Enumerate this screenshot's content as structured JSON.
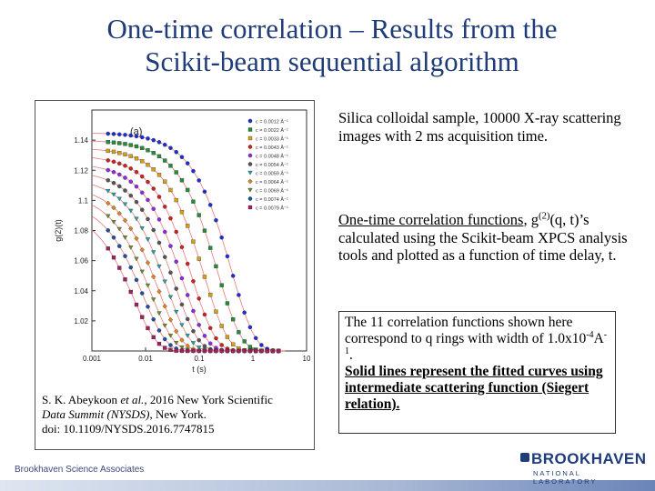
{
  "title": {
    "line1": "One-time correlation – Results from the",
    "line2": "Scikit-beam sequential algorithm"
  },
  "figure": {
    "caption_line1_pre": "S. K. Abeykoon ",
    "caption_line1_em": "et al.",
    "caption_line1_post": ", 2016 New York Scientific",
    "caption_line2_em": "Data Summit (NYSDS)",
    "caption_line2_post": ", New York.",
    "caption_line3": "doi: 10.1109/NYSDS.2016.7747815"
  },
  "right_column": {
    "p1": "Silica colloidal sample, 10000 X-ray scattering images with 2 ms acquisition time.",
    "p2_heading": "One-time correlation functions",
    "p2_heading_tail": ",",
    "p2_g": "g",
    "p2_sup": "(2)",
    "p2_rest": "(q, t)’s calculated using the Scikit-beam XPCS analysis tools and plotted as a function of time delay, t."
  },
  "box": {
    "line1": "The 11 correlation functions shown here correspond to q rings with width of 1.0x10",
    "sup1": "-4",
    "unit": "A",
    "sup2": "-1",
    "dot": ".",
    "bold": "Solid lines represent the fitted curves using intermediate scattering function (Siegert relation)."
  },
  "footer": {
    "text": "Brookhaven Science Associates"
  },
  "logo": {
    "word": "BROOKHAVEN",
    "sub": "NATIONAL LABORATORY"
  },
  "chart_data": {
    "type": "scatter",
    "panel_label": "(a)",
    "xlabel": "t (s)",
    "ylabel": "g(2)(t)",
    "xscale": "log",
    "xlim": [
      0.001,
      10
    ],
    "ylim": [
      1.0,
      1.16
    ],
    "xticks": [
      "0.001",
      "0.01",
      "0.1",
      "1",
      "10"
    ],
    "yticks": [
      "1.02",
      "1.04",
      "1.06",
      "1.08",
      "1.1",
      "1.12",
      "1.14"
    ],
    "grid": false,
    "legend_position": "top-right",
    "series": [
      {
        "name": "c = 0.0012 Å⁻¹",
        "color": "#1a2fd6",
        "marker": "circle",
        "baseline": 1.0,
        "beta": 0.145,
        "tau": 0.8
      },
      {
        "name": "c = 0.0022 Å⁻¹",
        "color": "#1f8f3a",
        "marker": "square",
        "baseline": 1.0,
        "beta": 0.14,
        "tau": 0.45
      },
      {
        "name": "c = 0.0033 Å⁻¹",
        "color": "#d4a017",
        "marker": "square",
        "baseline": 1.0,
        "beta": 0.135,
        "tau": 0.25
      },
      {
        "name": "c = 0.0043 Å⁻¹",
        "color": "#cc2222",
        "marker": "circle",
        "baseline": 1.0,
        "beta": 0.13,
        "tau": 0.15
      },
      {
        "name": "c = 0.0048 Å⁻¹",
        "color": "#8a2be2",
        "marker": "circle",
        "baseline": 1.0,
        "beta": 0.125,
        "tau": 0.1
      },
      {
        "name": "c = 0.0054 Å⁻¹",
        "color": "#555555",
        "marker": "circle",
        "baseline": 1.0,
        "beta": 0.12,
        "tau": 0.07
      },
      {
        "name": "c = 0.0059 Å⁻¹",
        "color": "#1aa5a5",
        "marker": "triangle-down",
        "baseline": 1.0,
        "beta": 0.115,
        "tau": 0.05
      },
      {
        "name": "c = 0.0064 Å⁻¹",
        "color": "#e08020",
        "marker": "diamond",
        "baseline": 1.0,
        "beta": 0.11,
        "tau": 0.035
      },
      {
        "name": "c = 0.0069 Å⁻¹",
        "color": "#6b8e23",
        "marker": "triangle-down",
        "baseline": 1.0,
        "beta": 0.105,
        "tau": 0.025
      },
      {
        "name": "c = 0.0074 Å⁻¹",
        "color": "#2050a0",
        "marker": "circle",
        "baseline": 1.0,
        "beta": 0.1,
        "tau": 0.018
      },
      {
        "name": "c = 0.0079 Å⁻¹",
        "color": "#a02060",
        "marker": "square",
        "baseline": 1.0,
        "beta": 0.095,
        "tau": 0.012
      }
    ]
  }
}
